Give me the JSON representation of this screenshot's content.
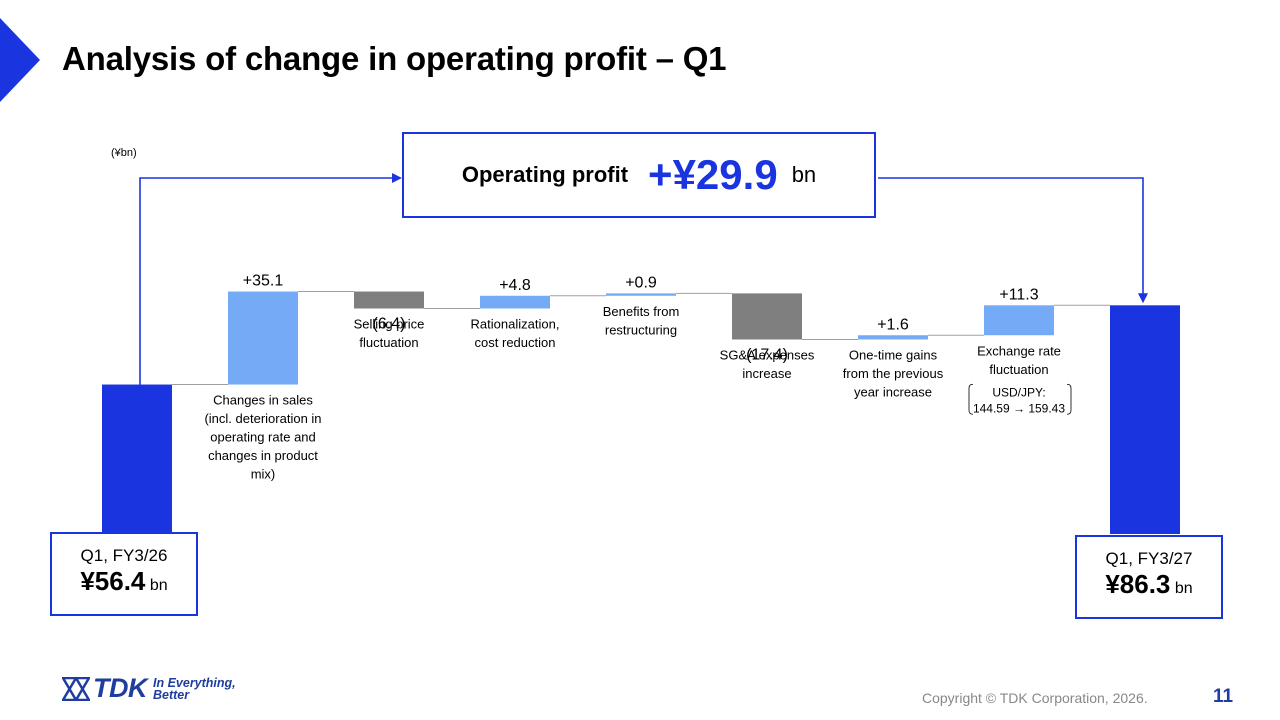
{
  "header": {
    "title": "Analysis of change in operating profit – Q1"
  },
  "unit_note": "(¥bn)",
  "summary": {
    "label": "Operating profit",
    "value": "+¥29.9",
    "unit": "bn"
  },
  "start_box": {
    "period": "Q1, FY3/26",
    "amount": "¥56.4",
    "unit": "bn"
  },
  "end_box": {
    "period": "Q1, FY3/27",
    "amount": "¥86.3",
    "unit": "bn"
  },
  "chart_data": {
    "type": "bar",
    "subtype": "waterfall",
    "y_range": [
      0,
      86.3
    ],
    "start": {
      "value": 56.4
    },
    "end": {
      "value": 86.3
    },
    "steps": [
      {
        "value": 35.1,
        "label": "+35.1",
        "category": [
          "Changes in sales",
          "(incl. deterioration in",
          "operating rate and",
          "changes in product",
          "mix)"
        ]
      },
      {
        "value": -6.4,
        "label": "(6.4)",
        "category": [
          "Selling price",
          "fluctuation"
        ]
      },
      {
        "value": 4.8,
        "label": "+4.8",
        "category": [
          "Rationalization,",
          "cost reduction"
        ]
      },
      {
        "value": 0.9,
        "label": "+0.9",
        "category": [
          "Benefits from",
          "restructuring"
        ]
      },
      {
        "value": -17.4,
        "label": "(17.4)",
        "category": [
          "SG&A expenses",
          "increase"
        ]
      },
      {
        "value": 1.6,
        "label": "+1.6",
        "category": [
          "One-time gains",
          "from the previous",
          "year increase"
        ]
      },
      {
        "value": 11.3,
        "label": "+11.3",
        "category": [
          "Exchange rate",
          "fluctuation"
        ],
        "note": [
          "USD/JPY:",
          "144.59 → 159.43"
        ]
      }
    ],
    "colors": {
      "total": "#1a35e0",
      "increase": "#75aaf7",
      "decrease": "#7f7f7f",
      "connector": "#a0a0a0",
      "arrow": "#1a35e0"
    }
  },
  "footer": {
    "brand": "TDK",
    "slogan_line1": "In Everything,",
    "slogan_line2": "Better",
    "copyright": "Copyright © TDK Corporation, 2026.",
    "page_number": "11"
  }
}
